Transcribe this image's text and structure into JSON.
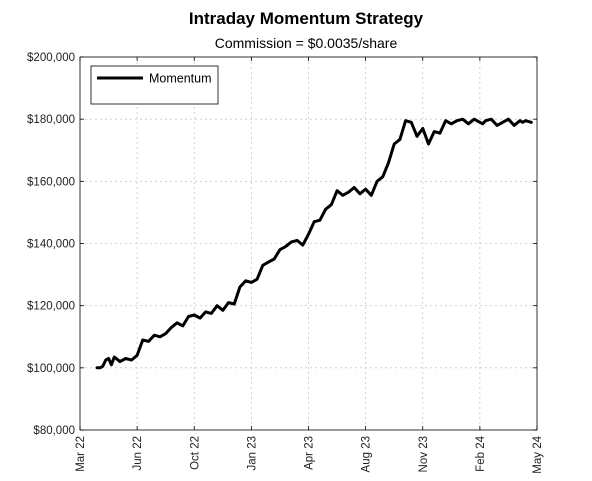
{
  "chart_data": {
    "type": "line",
    "title": "Intraday Momentum Strategy",
    "subtitle": "Commission = $0.0035/share",
    "xlabel": "",
    "ylabel": "",
    "x_ticks": [
      "Mar 22",
      "Jun 22",
      "Oct 22",
      "Jan 23",
      "Apr 23",
      "Aug 23",
      "Nov 23",
      "Feb 24",
      "May 24"
    ],
    "y_ticks": [
      "$80,000",
      "$100,000",
      "$120,000",
      "$140,000",
      "$160,000",
      "$180,000",
      "$200,000"
    ],
    "ylim": [
      80000,
      200000
    ],
    "grid": true,
    "legend_position": "top-left",
    "series": [
      {
        "name": "Momentum",
        "color": "#000000",
        "width": 3,
        "x": [
          0.3,
          0.35,
          0.4,
          0.45,
          0.5,
          0.55,
          0.6,
          0.7,
          0.8,
          0.9,
          1.0,
          1.1,
          1.2,
          1.3,
          1.4,
          1.5,
          1.6,
          1.7,
          1.8,
          1.9,
          2.0,
          2.1,
          2.2,
          2.3,
          2.4,
          2.5,
          2.6,
          2.7,
          2.8,
          2.9,
          3.0,
          3.1,
          3.2,
          3.3,
          3.4,
          3.5,
          3.6,
          3.7,
          3.8,
          3.9,
          4.0,
          4.1,
          4.2,
          4.3,
          4.4,
          4.5,
          4.6,
          4.7,
          4.8,
          4.9,
          5.0,
          5.1,
          5.2,
          5.3,
          5.4,
          5.5,
          5.6,
          5.7,
          5.8,
          5.9,
          6.0,
          6.1,
          6.2,
          6.3,
          6.4,
          6.5,
          6.6,
          6.7,
          6.8,
          6.9,
          7.0,
          7.05,
          7.1,
          7.2,
          7.3,
          7.4,
          7.5,
          7.6,
          7.7,
          7.75,
          7.8,
          7.9
        ],
        "y": [
          100000,
          100000,
          100500,
          102500,
          103000,
          101000,
          103500,
          102000,
          103000,
          102500,
          104000,
          109000,
          108500,
          110500,
          110000,
          111000,
          113000,
          114500,
          113500,
          116500,
          117000,
          116000,
          118000,
          117500,
          120000,
          118500,
          121000,
          120500,
          126000,
          128000,
          127500,
          128500,
          133000,
          134000,
          135000,
          138000,
          139000,
          140500,
          141000,
          139500,
          143000,
          147000,
          147500,
          151000,
          152500,
          157000,
          155500,
          156500,
          158000,
          156000,
          157500,
          155500,
          160000,
          161500,
          166000,
          172000,
          173500,
          179500,
          179000,
          174500,
          177000,
          172000,
          176000,
          175500,
          179500,
          178500,
          179500,
          180000,
          178500,
          180000,
          179000,
          178500,
          179500,
          180000,
          178000,
          179000,
          180000,
          178000,
          179500,
          179000,
          179500,
          179000
        ],
        "x_comment": "",
        "y_comment": ""
      }
    ]
  }
}
